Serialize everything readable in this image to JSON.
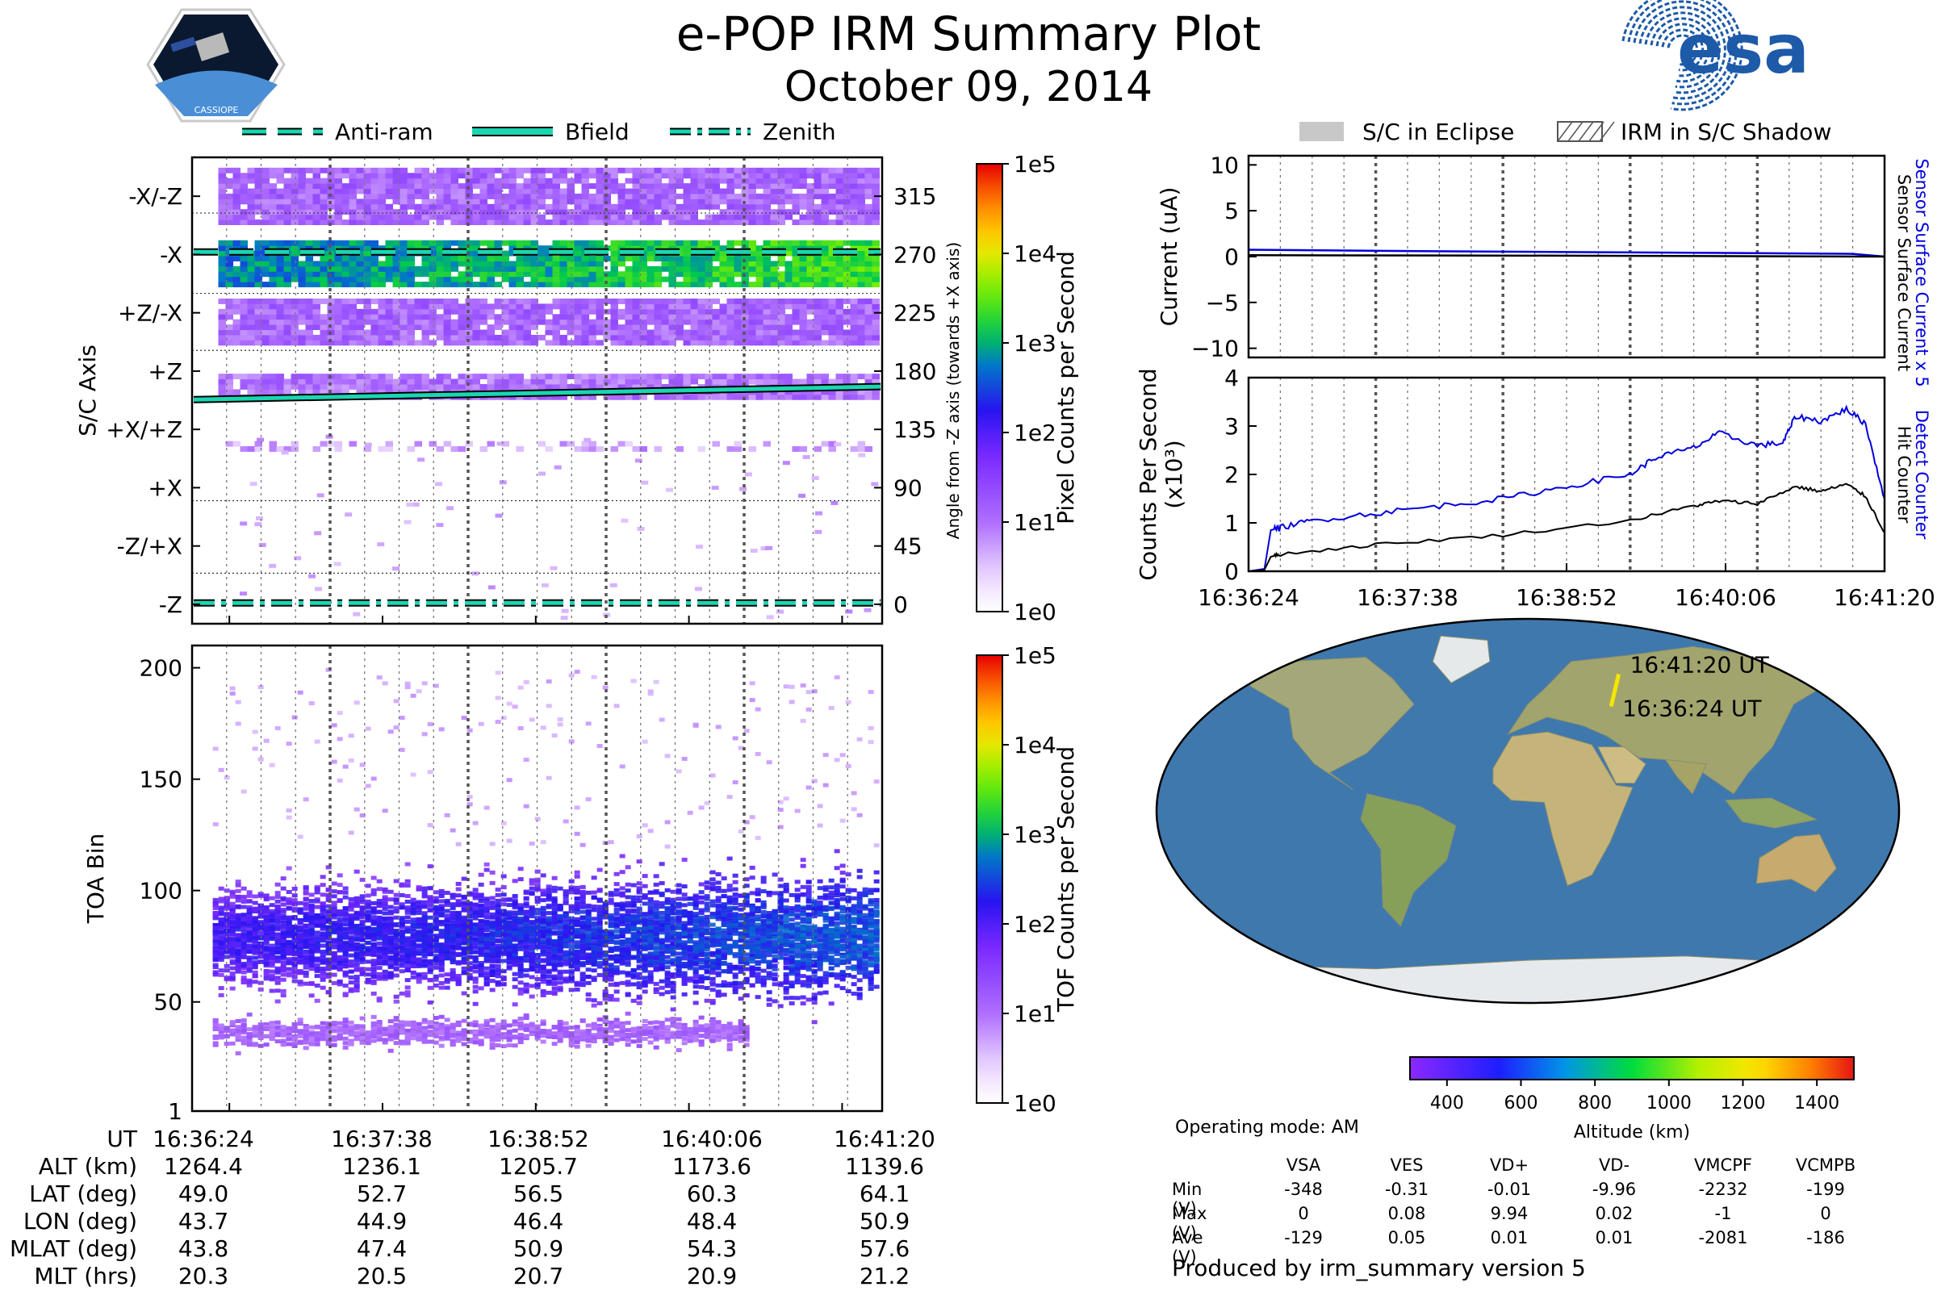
{
  "header": {
    "title_line1": "e-POP IRM Summary Plot",
    "title_line2": "October 09, 2014",
    "left_logo_text": "CASSIOPE",
    "right_logo_text": "esa"
  },
  "legend_top_left": [
    "Anti-ram",
    "Bfield",
    "Zenith"
  ],
  "legend_top_right": [
    "S/C in Eclipse",
    "IRM in S/C Shadow"
  ],
  "colors": {
    "cyan_line": "#1ad6b3",
    "blue_line": "#0000dd",
    "black_line": "#000000",
    "yellow_track": "#f5e600",
    "eclipse_gray": "#c8c8c8"
  },
  "chart_data": [
    {
      "id": "pixel_panel",
      "type": "heatmap",
      "ylabel": "S/C Axis",
      "ylabel_right": "Angle from -Z axis (towards +X axis)",
      "y_axis_labels": [
        "-X/-Z",
        "-X",
        "+Z/-X",
        "+Z",
        "+X/+Z",
        "+X",
        "-Z/+X",
        "-Z"
      ],
      "y_axis_angles": [
        315,
        270,
        225,
        180,
        135,
        90,
        45,
        0
      ],
      "right_ticks": [
        "315",
        "270",
        "225",
        "180",
        "135",
        "90",
        "45",
        "0"
      ],
      "ylim": [
        -15,
        345
      ],
      "colorbar_label": "Pixel Counts per Second",
      "colorbar_ticks": [
        "1e0",
        "1e1",
        "1e2",
        "1e3",
        "1e4",
        "1e5"
      ],
      "bands": [
        {
          "center": 315,
          "height": 22,
          "level": 0.22
        },
        {
          "center": 263,
          "height": 18,
          "level": 0.55
        },
        {
          "center": 218,
          "height": 18,
          "level": 0.22
        },
        {
          "center": 168,
          "height": 10,
          "level": 0.2
        },
        {
          "center": 122,
          "height": 4,
          "level": 0.14
        }
      ],
      "series": [
        {
          "name": "Anti-ram",
          "x": [
            0,
            1
          ],
          "y": [
            272,
            272
          ],
          "style": "dashed"
        },
        {
          "name": "Bfield",
          "x": [
            0,
            1
          ],
          "y": [
            158,
            168
          ],
          "style": "solid"
        },
        {
          "name": "Zenith",
          "x": [
            0,
            1
          ],
          "y": [
            1,
            1
          ],
          "style": "dashdot"
        }
      ]
    },
    {
      "id": "toa_panel",
      "type": "heatmap",
      "ylabel": "TOA Bin",
      "ylim": [
        1,
        210
      ],
      "yticks": [
        1,
        50,
        100,
        150,
        200
      ],
      "colorbar_label": "TOF Counts per Second",
      "colorbar_ticks": [
        "1e0",
        "1e1",
        "1e2",
        "1e3",
        "1e4",
        "1e5"
      ],
      "main_band": {
        "center": 80,
        "height": 28
      },
      "low_band": {
        "center": 37,
        "height": 10
      }
    },
    {
      "id": "current_panel",
      "type": "line",
      "ylabel": "Current (uA)",
      "ylim": [
        -11,
        11
      ],
      "yticks": [
        -10,
        -5,
        0,
        5,
        10
      ],
      "right_labels": [
        "Sensor Surface Current x 5",
        "Sensor Surface Current"
      ],
      "series": [
        {
          "name": "Sensor Surface Current x 5",
          "x": [
            0,
            0.25,
            0.5,
            0.75,
            0.95,
            1
          ],
          "y": [
            0.75,
            0.6,
            0.5,
            0.4,
            0.3,
            0
          ]
        },
        {
          "name": "Sensor Surface Current",
          "x": [
            0,
            0.5,
            1
          ],
          "y": [
            0.15,
            0.1,
            0
          ]
        }
      ]
    },
    {
      "id": "counts_panel",
      "type": "line",
      "ylabel": "Counts Per Second (x10³)",
      "ylim": [
        0,
        4
      ],
      "yticks": [
        0,
        1,
        2,
        3,
        4
      ],
      "xticklabels": [
        "16:36:24",
        "16:37:38",
        "16:38:52",
        "16:40:06",
        "16:41:20"
      ],
      "right_labels": [
        "Detect Counter",
        "Hit Counter"
      ],
      "series": [
        {
          "name": "Detect Counter",
          "x": [
            0,
            0.025,
            0.035,
            0.05,
            0.1,
            0.2,
            0.3,
            0.4,
            0.5,
            0.6,
            0.64,
            0.7,
            0.74,
            0.8,
            0.84,
            0.86,
            0.9,
            0.94,
            0.97,
            1
          ],
          "y": [
            0,
            0.05,
            0.85,
            0.9,
            1.05,
            1.2,
            1.35,
            1.5,
            1.75,
            2.0,
            2.35,
            2.55,
            2.85,
            2.6,
            2.65,
            3.2,
            3.1,
            3.35,
            3.05,
            1.5
          ]
        },
        {
          "name": "Hit Counter",
          "x": [
            0,
            0.025,
            0.035,
            0.05,
            0.2,
            0.4,
            0.6,
            0.7,
            0.74,
            0.8,
            0.86,
            0.9,
            0.94,
            0.97,
            1
          ],
          "y": [
            0,
            0.03,
            0.3,
            0.35,
            0.55,
            0.75,
            1.05,
            1.35,
            1.45,
            1.4,
            1.75,
            1.65,
            1.8,
            1.55,
            0.8
          ]
        }
      ]
    },
    {
      "id": "orbit_map",
      "type": "map",
      "track_labels": [
        "16:41:20 UT",
        "16:36:24 UT"
      ],
      "track": {
        "lon": [
          43.7,
          50.9
        ],
        "lat": [
          49.0,
          64.1
        ]
      },
      "colorbar_label": "Altitude (km)",
      "colorbar_ticks": [
        400,
        600,
        800,
        1000,
        1200,
        1400
      ],
      "colorbar_range": [
        300,
        1500
      ]
    }
  ],
  "ephemeris": {
    "labels": [
      "UT",
      "ALT (km)",
      "LAT (deg)",
      "LON (deg)",
      "MLAT (deg)",
      "MLT (hrs)"
    ],
    "columns": [
      [
        "16:36:24",
        "1264.4",
        "49.0",
        "43.7",
        "43.8",
        "20.3"
      ],
      [
        "16:37:38",
        "1236.1",
        "52.7",
        "44.9",
        "47.4",
        "20.5"
      ],
      [
        "16:38:52",
        "1205.7",
        "56.5",
        "46.4",
        "50.9",
        "20.7"
      ],
      [
        "16:40:06",
        "1173.6",
        "60.3",
        "48.4",
        "54.3",
        "20.9"
      ],
      [
        "16:41:20",
        "1139.6",
        "64.1",
        "50.9",
        "57.6",
        "21.2"
      ]
    ]
  },
  "voltages": {
    "operating_mode": "Operating mode: AM",
    "headers": [
      "VSA",
      "VES",
      "VD+",
      "VD-",
      "VMCPF",
      "VCMPB"
    ],
    "rows": [
      {
        "label": "Min (V)",
        "values": [
          "-348",
          "-0.31",
          "-0.01",
          "-9.96",
          "-2232",
          "-199"
        ]
      },
      {
        "label": "Max (V)",
        "values": [
          "0",
          "0.08",
          "9.94",
          "0.02",
          "-1",
          "0"
        ]
      },
      {
        "label": "Ave (V)",
        "values": [
          "-129",
          "0.05",
          "0.01",
          "0.01",
          "-2081",
          "-186"
        ]
      }
    ]
  },
  "footer": "Produced by irm_summary version 5"
}
